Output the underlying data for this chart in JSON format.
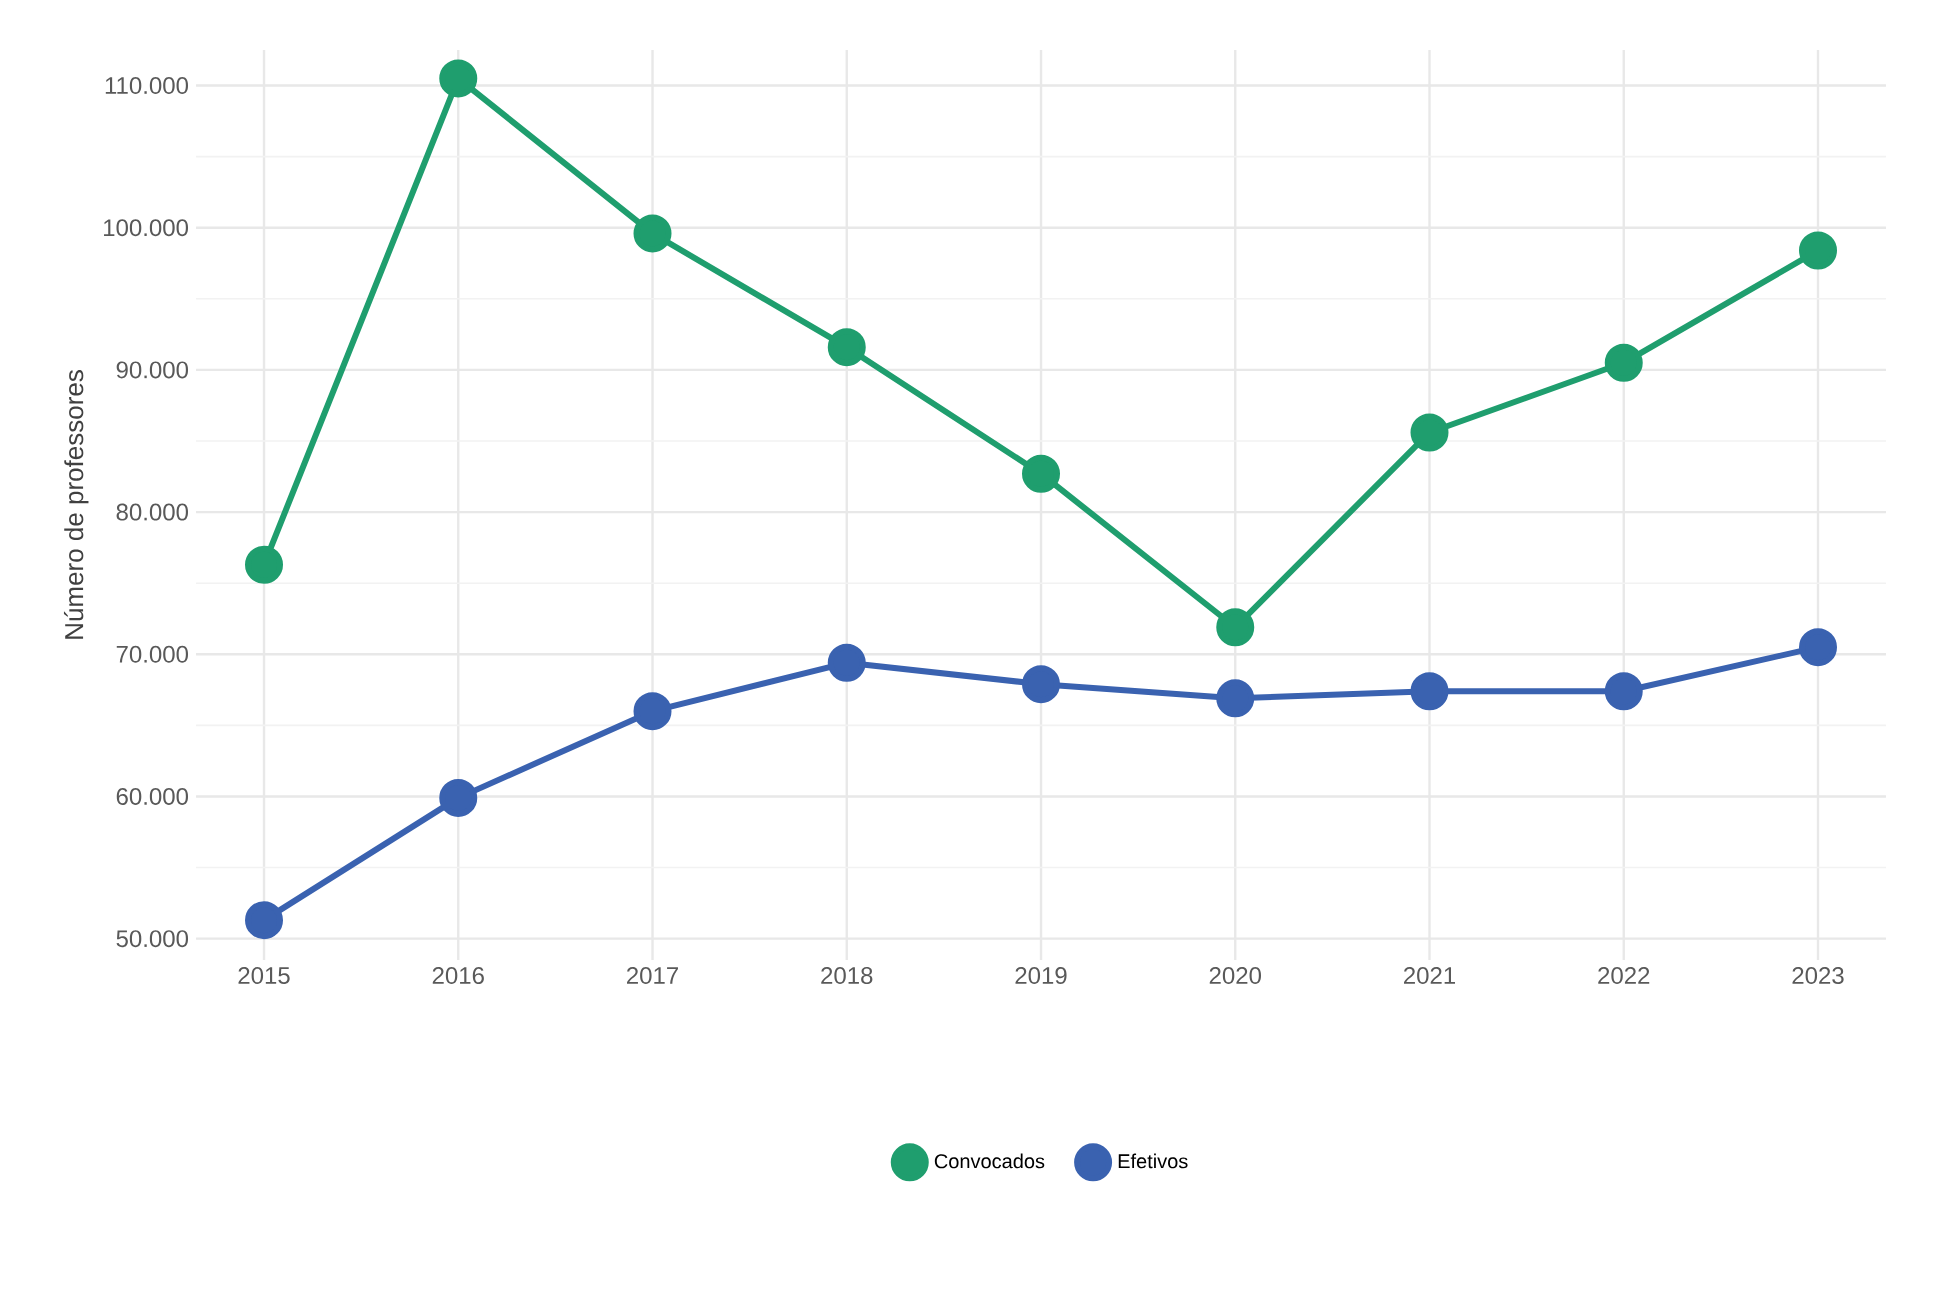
{
  "chart_data": {
    "type": "line",
    "ylabel": "Número de professores",
    "categories": [
      "2015",
      "2016",
      "2017",
      "2018",
      "2019",
      "2020",
      "2021",
      "2022",
      "2023"
    ],
    "series": [
      {
        "name": "Convocados",
        "color": "#1f9e6e",
        "values": [
          76300,
          110500,
          99600,
          91600,
          82700,
          71900,
          85600,
          90500,
          98400
        ]
      },
      {
        "name": "Efetivos",
        "color": "#3a62b0",
        "values": [
          51300,
          59900,
          66000,
          69400,
          67900,
          66900,
          67400,
          67400,
          70500
        ]
      }
    ],
    "ylim": [
      48500,
      112500
    ],
    "yticks": [
      {
        "value": 50000,
        "label": "50.000"
      },
      {
        "value": 60000,
        "label": "60.000"
      },
      {
        "value": 70000,
        "label": "70.000"
      },
      {
        "value": 80000,
        "label": "80.000"
      },
      {
        "value": 90000,
        "label": "90.000"
      },
      {
        "value": 100000,
        "label": "100.000"
      },
      {
        "value": 110000,
        "label": "110.000"
      }
    ],
    "grid": true,
    "legend": "bottom",
    "marker": "circle",
    "line_style": "solid"
  }
}
